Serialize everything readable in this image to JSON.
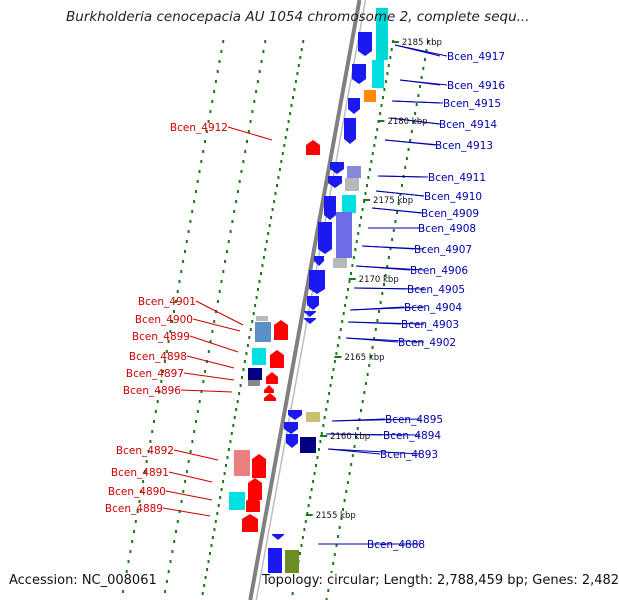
{
  "title": "Burkholderia cenocepacia AU 1054 chromosome 2, complete sequ...",
  "accession": "Accession: NC_008061",
  "topology": "Topology: circular; Length: 2,788,459 bp; Genes: 2,482",
  "scale_labels": [
    "2185 kbp",
    "2180 kbp",
    "2175 kbp",
    "2170 kbp",
    "2165 kbp",
    "2160 kbp",
    "2155 kbp"
  ],
  "genes_right": [
    "Bcen_4917",
    "Bcen_4916",
    "Bcen_4915",
    "Bcen_4914",
    "Bcen_4913",
    "Bcen_4911",
    "Bcen_4910",
    "Bcen_4909",
    "Bcen_4908",
    "Bcen_4907",
    "Bcen_4906",
    "Bcen_4905",
    "Bcen_4904",
    "Bcen_4903",
    "Bcen_4902",
    "Bcen_4895",
    "Bcen_4894",
    "Bcen_4893",
    "Bcen_4888"
  ],
  "genes_left": [
    "Bcen_4912",
    "Bcen_4901",
    "Bcen_4900",
    "Bcen_4899",
    "Bcen_4898",
    "Bcen_4897",
    "Bcen_4896",
    "Bcen_4892",
    "Bcen_4891",
    "Bcen_4890",
    "Bcen_4889"
  ],
  "colors": {
    "forward_strand": "#1a1af0",
    "reverse_strand": "#ff0000",
    "label_forward": "#0000aa",
    "label_reverse": "#cc0000",
    "backbone": "#808080",
    "tick": "#1a7a1a"
  }
}
